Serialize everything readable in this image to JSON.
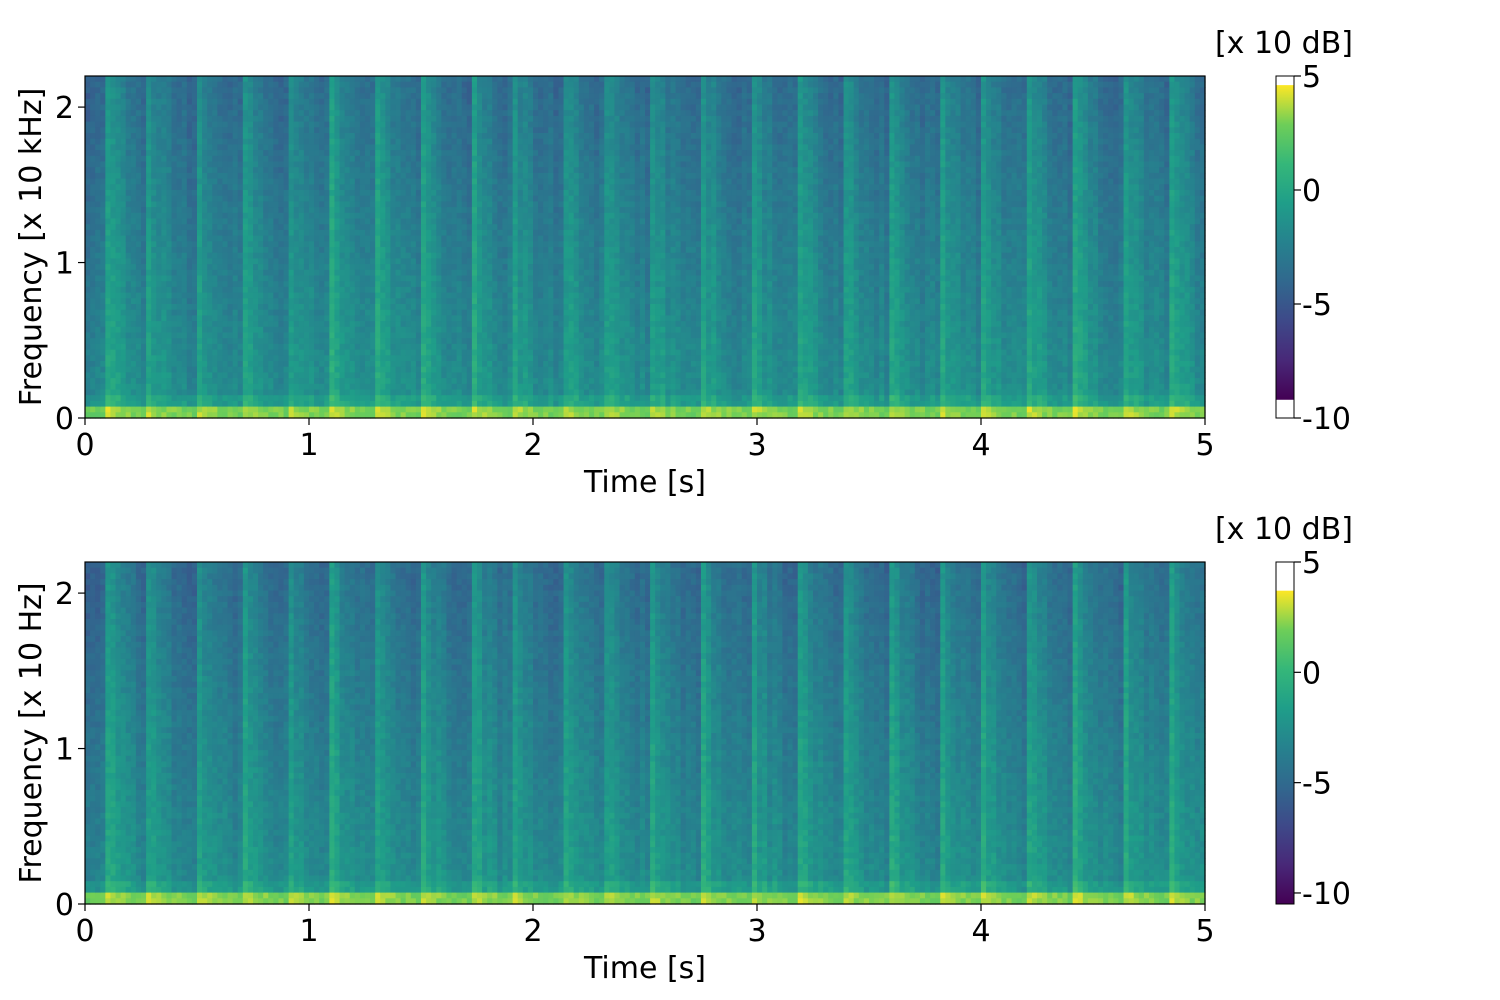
{
  "chart_data": [
    {
      "type": "heatmap",
      "title": "",
      "xlabel": "Time [s]",
      "ylabel": "Frequency [x 10 kHz]",
      "xlim": [
        0,
        5
      ],
      "ylim": [
        0,
        2.2
      ],
      "x_ticks": [
        0,
        1,
        2,
        3,
        4,
        5
      ],
      "y_ticks": [
        0,
        1,
        2
      ],
      "colormap": "viridis",
      "colorbar": {
        "label": "[x 10 dB]",
        "ticks": [
          "5",
          "0",
          "-5",
          "-10"
        ],
        "tick_values": [
          5,
          0,
          -5,
          -10
        ],
        "range": [
          -10,
          5
        ],
        "data_min": -9.2,
        "data_max": 4.6
      },
      "onsets_s": [
        0.1,
        0.27,
        0.49,
        0.7,
        0.9,
        1.1,
        1.3,
        1.5,
        1.73,
        1.9,
        2.13,
        2.31,
        2.52,
        2.75,
        2.97,
        3.19,
        3.38,
        3.59,
        3.82,
        4.0,
        4.21,
        4.42,
        4.64,
        4.85
      ]
    },
    {
      "type": "heatmap",
      "title": "",
      "xlabel": "Time [s]",
      "ylabel": "Frequency [x 10 Hz]",
      "xlim": [
        0,
        5
      ],
      "ylim": [
        0,
        2.2
      ],
      "x_ticks": [
        0,
        1,
        2,
        3,
        4,
        5
      ],
      "y_ticks": [
        0,
        1,
        2
      ],
      "colormap": "viridis",
      "colorbar": {
        "label": "[x 10 dB]",
        "ticks": [
          "5",
          "0",
          "-5",
          "-10"
        ],
        "tick_values": [
          5,
          0,
          -5,
          -10
        ],
        "range": [
          -10.5,
          5
        ],
        "data_min": -10.5,
        "data_max": 3.7
      },
      "onsets_s": [
        0.1,
        0.27,
        0.49,
        0.7,
        0.9,
        1.1,
        1.3,
        1.5,
        1.73,
        1.9,
        2.13,
        2.31,
        2.52,
        2.75,
        2.97,
        3.19,
        3.38,
        3.59,
        3.82,
        4.0,
        4.21,
        4.42,
        4.64,
        4.85
      ]
    }
  ]
}
